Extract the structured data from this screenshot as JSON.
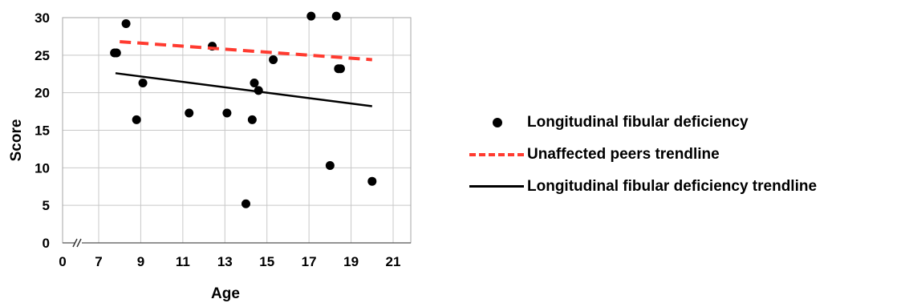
{
  "chart_data": {
    "type": "scatter",
    "xlabel": "Age",
    "ylabel": "Score",
    "x_ticks": [
      "0",
      "7",
      "9",
      "11",
      "13",
      "15",
      "17",
      "19",
      "21"
    ],
    "y_ticks": [
      "0",
      "5",
      "10",
      "15",
      "20",
      "25",
      "30"
    ],
    "xlim": [
      7,
      21
    ],
    "ylim": [
      0,
      30
    ],
    "axis_break": true,
    "grid": true,
    "legend_position": "right",
    "series": [
      {
        "name": "Longitudinal fibular deficiency",
        "kind": "points",
        "color": "#000000",
        "points": [
          {
            "x": 7.75,
            "y": 25.3
          },
          {
            "x": 7.85,
            "y": 25.3
          },
          {
            "x": 8.3,
            "y": 29.2
          },
          {
            "x": 8.8,
            "y": 16.4
          },
          {
            "x": 9.1,
            "y": 21.3
          },
          {
            "x": 11.3,
            "y": 17.3
          },
          {
            "x": 12.4,
            "y": 26.2
          },
          {
            "x": 13.1,
            "y": 17.3
          },
          {
            "x": 14.0,
            "y": 5.2
          },
          {
            "x": 14.3,
            "y": 16.4
          },
          {
            "x": 14.4,
            "y": 21.3
          },
          {
            "x": 14.6,
            "y": 20.3
          },
          {
            "x": 15.3,
            "y": 24.4
          },
          {
            "x": 17.1,
            "y": 30.2
          },
          {
            "x": 18.0,
            "y": 10.3
          },
          {
            "x": 18.3,
            "y": 30.2
          },
          {
            "x": 18.4,
            "y": 23.2
          },
          {
            "x": 18.5,
            "y": 23.2
          },
          {
            "x": 20.0,
            "y": 8.2
          }
        ]
      },
      {
        "name": "Unaffected peers trendline",
        "kind": "dashed-line",
        "color": "#ff3b30",
        "points": [
          {
            "x": 8.0,
            "y": 26.8
          },
          {
            "x": 20.0,
            "y": 24.4
          }
        ]
      },
      {
        "name": "Longitudinal fibular deficiency trendline",
        "kind": "solid-line",
        "color": "#000000",
        "points": [
          {
            "x": 7.8,
            "y": 22.6
          },
          {
            "x": 20.0,
            "y": 18.2
          }
        ]
      }
    ]
  }
}
